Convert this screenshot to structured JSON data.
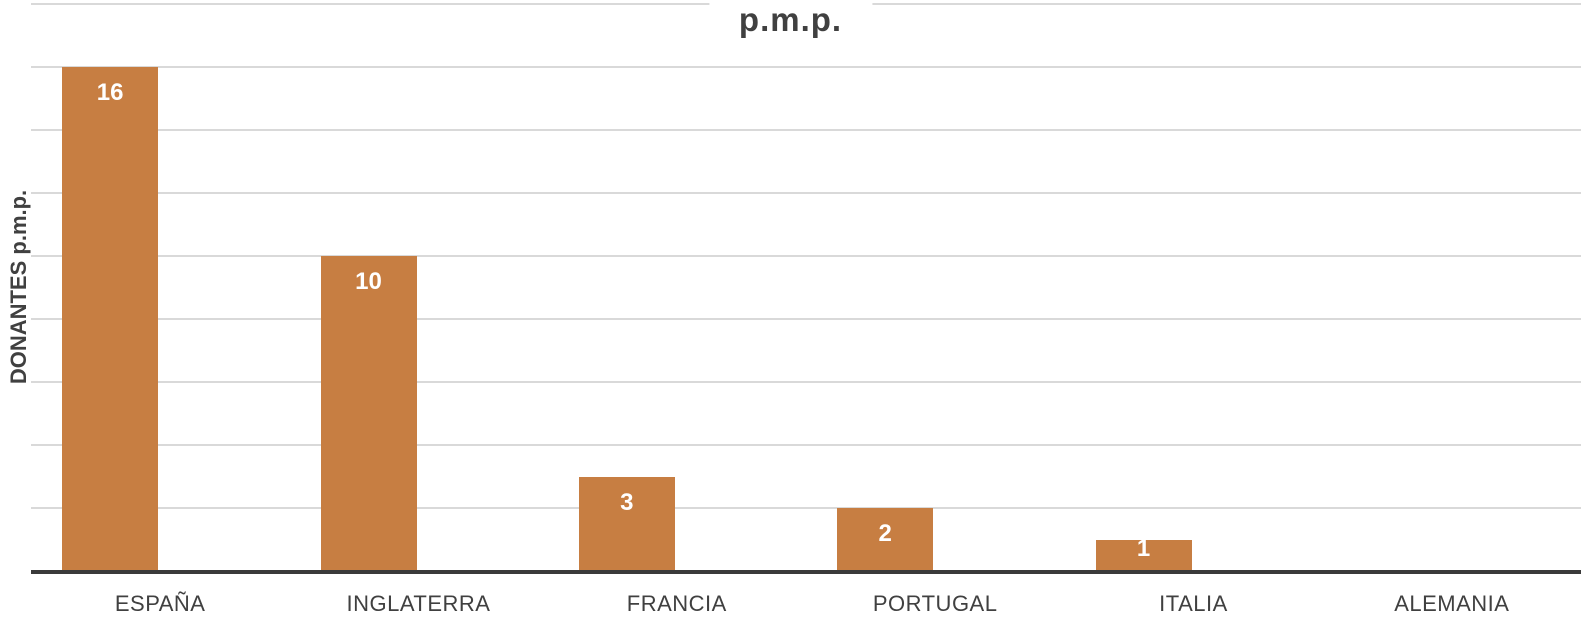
{
  "chart_data": {
    "type": "bar",
    "title": "p.m.p.",
    "xlabel": "",
    "ylabel": "DONANTES p.m.p.",
    "categories": [
      "ESPAÑA",
      "INGLATERRA",
      "FRANCIA",
      "PORTUGAL",
      "ITALIA",
      "ALEMANIA"
    ],
    "values": [
      16,
      10,
      3,
      2,
      1,
      0
    ],
    "bar_labels": [
      "16",
      "10",
      "3",
      "2",
      "1",
      ""
    ],
    "ylim": [
      0,
      18
    ],
    "grid_step": 2,
    "grid": true,
    "y_tick_labels_visible": false,
    "legend_position": "none",
    "colors": {
      "bar": "#C77E42",
      "bar_label": "#FFFFFF",
      "gridline": "#D9D9D9",
      "axis_line": "#3A3A3A",
      "text": "#404040",
      "background": "#FFFFFF"
    }
  }
}
